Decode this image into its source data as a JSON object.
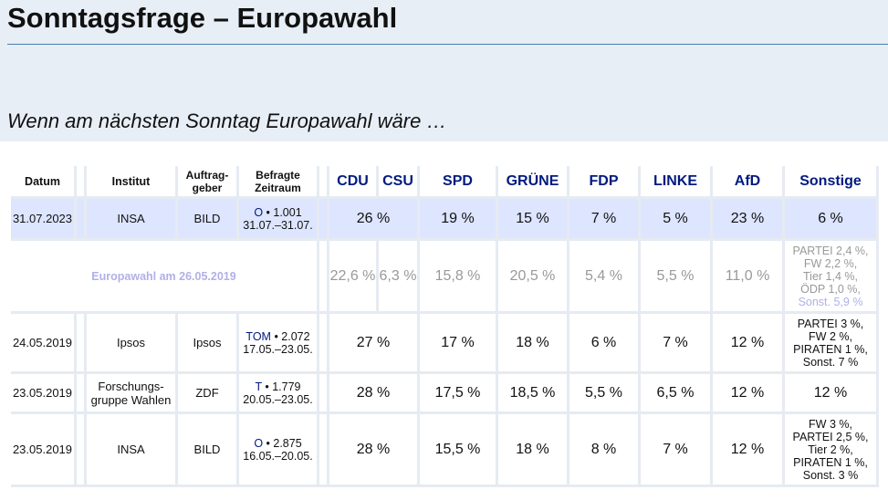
{
  "title": "Sonntagsfrage – Europawahl",
  "lead": "Wenn am nächsten Sonntag Europawahl wäre …",
  "headers": {
    "datum": "Datum",
    "institut": "Institut",
    "auftrag_1": "Auftrag-",
    "auftrag_2": "geber",
    "befragte_1": "Befragte",
    "befragte_2": "Zeitraum",
    "parties": [
      "CDU",
      "CSU",
      "SPD",
      "GRÜNE",
      "FDP",
      "LINKE",
      "AfD",
      "Sonstige"
    ]
  },
  "rows": [
    {
      "datum": "31.07.2023",
      "institut": "INSA",
      "auftrag": "BILD",
      "method": "O",
      "befragte": " • 1.001",
      "zeitraum": "31.07.–31.07.",
      "cducsu": "26 %",
      "spd": "19 %",
      "gruene": "15 %",
      "fdp": "7 %",
      "linke": "5 %",
      "afd": "23 %",
      "sonstige": "6 %"
    },
    {
      "label": "Europawahl am 26.05.2019",
      "cdu": "22,6 %",
      "csu": "6,3 %",
      "spd": "15,8 %",
      "gruene": "20,5 %",
      "fdp": "5,4 %",
      "linke": "5,5 %",
      "afd": "11,0 %",
      "sonst_lines": [
        "PARTEI 2,4 %,",
        "FW 2,2 %,",
        "Tier 1,4 %,",
        "ÖDP 1,0 %,"
      ],
      "sonst_total": "Sonst. 5,9 %"
    },
    {
      "datum": "24.05.2019",
      "institut": "Ipsos",
      "auftrag": "Ipsos",
      "method": "TOM",
      "befragte": " • 2.072",
      "zeitraum": "17.05.–23.05.",
      "cducsu": "27 %",
      "spd": "17 %",
      "gruene": "18 %",
      "fdp": "6 %",
      "linke": "7 %",
      "afd": "12 %",
      "sonst_lines": [
        "PARTEI 3 %,",
        "FW 2 %,",
        "PIRATEN 1 %,",
        "Sonst. 7 %"
      ]
    },
    {
      "datum": "23.05.2019",
      "institut_1": "Forschungs-",
      "institut_2": "gruppe Wahlen",
      "auftrag": "ZDF",
      "method": "T",
      "befragte": " • 1.779",
      "zeitraum": "20.05.–23.05.",
      "cducsu": "28 %",
      "spd": "17,5 %",
      "gruene": "18,5 %",
      "fdp": "5,5 %",
      "linke": "6,5 %",
      "afd": "12 %",
      "sonstige": "12 %"
    },
    {
      "datum": "23.05.2019",
      "institut": "INSA",
      "auftrag": "BILD",
      "method": "O",
      "befragte": " • 2.875",
      "zeitraum": "16.05.–20.05.",
      "cducsu": "28 %",
      "spd": "15,5 %",
      "gruene": "18 %",
      "fdp": "8 %",
      "linke": "7 %",
      "afd": "12 %",
      "sonst_lines": [
        "FW 3 %,",
        "PARTEI 2,5 %,",
        "Tier 2 %,",
        "PIRATEN 1 %,",
        "Sonst. 3 %"
      ]
    }
  ]
}
